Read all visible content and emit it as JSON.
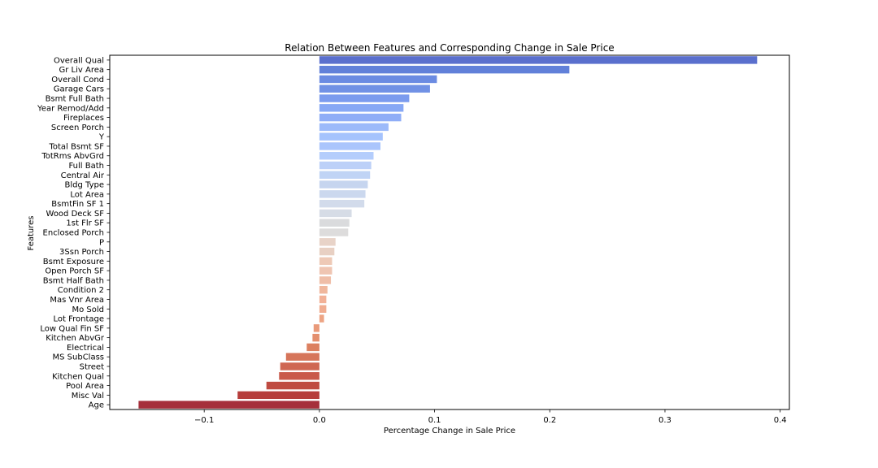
{
  "chart_data": {
    "type": "bar",
    "orientation": "horizontal",
    "title": "Relation Between Features and Corresponding Change in Sale Price",
    "xlabel": "Percentage Change in Sale Price",
    "ylabel": "Features",
    "xlim": [
      -0.182,
      0.408
    ],
    "xticks": [
      -0.1,
      0.0,
      0.1,
      0.2,
      0.3,
      0.4
    ],
    "xtick_labels": [
      "−0.1",
      "0.0",
      "0.1",
      "0.2",
      "0.3",
      "0.4"
    ],
    "grid": false,
    "colormap": "coolwarm",
    "categories": [
      "Overall Qual",
      "Gr Liv Area",
      "Overall Cond",
      "Garage Cars",
      "Bsmt Full Bath",
      "Year Remod/Add",
      "Fireplaces",
      "Screen Porch",
      "Y",
      "Total Bsmt SF",
      "TotRms AbvGrd",
      "Full Bath",
      "Central Air",
      "Bldg Type",
      "Lot Area",
      "BsmtFin SF 1",
      "Wood Deck SF",
      "1st Flr SF",
      "Enclosed Porch",
      "P",
      "3Ssn Porch",
      "Bsmt Exposure",
      "Open Porch SF",
      "Bsmt Half Bath",
      "Condition 2",
      "Mas Vnr Area",
      "Mo Sold",
      "Lot Frontage",
      "Low Qual Fin SF",
      "Kitchen AbvGr",
      "Electrical",
      "MS SubClass",
      "Street",
      "Kitchen Qual",
      "Pool Area",
      "Misc Val",
      "Age"
    ],
    "values": [
      0.38,
      0.217,
      0.102,
      0.096,
      0.078,
      0.073,
      0.071,
      0.06,
      0.055,
      0.053,
      0.047,
      0.045,
      0.044,
      0.042,
      0.04,
      0.039,
      0.028,
      0.026,
      0.025,
      0.014,
      0.013,
      0.011,
      0.011,
      0.01,
      0.007,
      0.006,
      0.006,
      0.004,
      -0.005,
      -0.006,
      -0.011,
      -0.029,
      -0.034,
      -0.035,
      -0.046,
      -0.071,
      -0.157
    ],
    "colors": [
      "#5a6fcd",
      "#6180d9",
      "#6b8be2",
      "#7191e5",
      "#7b9bee",
      "#87a8f5",
      "#8fadf7",
      "#9cbafa",
      "#a5c3fd",
      "#aac5fc",
      "#b4cdfc",
      "#bcd0f8",
      "#c0d4f5",
      "#c6d5ef",
      "#cbd8ee",
      "#d2dbeb",
      "#d6dce6",
      "#dadbdd",
      "#dddcdc",
      "#e8d3c8",
      "#e8d0c3",
      "#eec9b6",
      "#efc5b2",
      "#efbea8",
      "#f0b79d",
      "#f2b197",
      "#f0ad91",
      "#eda484",
      "#e99a7a",
      "#e48f6e",
      "#dc8060",
      "#d6755a",
      "#cf6753",
      "#c95a4b",
      "#bf4b41",
      "#b63d3b",
      "#a52f3b"
    ]
  }
}
